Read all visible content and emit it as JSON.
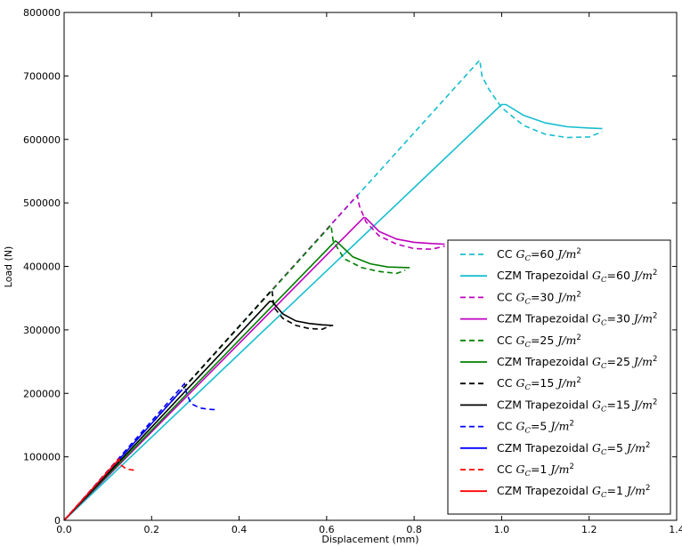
{
  "chart_data": {
    "type": "line",
    "xlabel": "Displacement (mm)",
    "ylabel": "Load (N)",
    "xlim": [
      0,
      1.4
    ],
    "ylim": [
      0,
      800000
    ],
    "xticks": [
      "0.0",
      "0.2",
      "0.4",
      "0.6",
      "0.8",
      "1.0",
      "1.2",
      "1.4"
    ],
    "yticks": [
      "0",
      "100000",
      "200000",
      "300000",
      "400000",
      "500000",
      "600000",
      "700000",
      "800000"
    ],
    "grid": false,
    "legend_position": "bottom-right",
    "series": [
      {
        "name": "CC",
        "gc": "60",
        "color": "#17becf",
        "dash": true,
        "x": [
          0,
          0.95,
          0.955,
          0.97,
          1.0,
          1.05,
          1.1,
          1.15,
          1.2,
          1.23
        ],
        "y": [
          0,
          725000,
          700000,
          680000,
          650000,
          622000,
          608000,
          603000,
          604000,
          612000
        ]
      },
      {
        "name": "CZM Trapezoidal",
        "gc": "60",
        "color": "#17becf",
        "dash": false,
        "x": [
          0,
          1.0,
          1.01,
          1.05,
          1.1,
          1.15,
          1.2,
          1.23
        ],
        "y": [
          0,
          655000,
          655000,
          638000,
          626000,
          620000,
          618000,
          617000
        ]
      },
      {
        "name": "CC",
        "gc": "30",
        "color": "#bf00bf",
        "dash": true,
        "x": [
          0,
          0.67,
          0.675,
          0.69,
          0.72,
          0.76,
          0.8,
          0.84,
          0.87
        ],
        "y": [
          0,
          512000,
          495000,
          470000,
          448000,
          435000,
          428000,
          427000,
          432000
        ]
      },
      {
        "name": "CZM Trapezoidal",
        "gc": "30",
        "color": "#bf00bf",
        "dash": false,
        "x": [
          0,
          0.685,
          0.69,
          0.72,
          0.76,
          0.8,
          0.84,
          0.87
        ],
        "y": [
          0,
          477000,
          476000,
          455000,
          443000,
          438000,
          436000,
          435000
        ]
      },
      {
        "name": "CC",
        "gc": "25",
        "color": "#008000",
        "dash": true,
        "x": [
          0,
          0.61,
          0.615,
          0.64,
          0.68,
          0.72,
          0.76,
          0.78
        ],
        "y": [
          0,
          465000,
          440000,
          412000,
          398000,
          392000,
          389000,
          394000
        ]
      },
      {
        "name": "CZM Trapezoidal",
        "gc": "25",
        "color": "#008000",
        "dash": false,
        "x": [
          0,
          0.62,
          0.625,
          0.66,
          0.7,
          0.74,
          0.79
        ],
        "y": [
          0,
          440000,
          438000,
          415000,
          404000,
          399000,
          398000
        ]
      },
      {
        "name": "CC",
        "gc": "15",
        "color": "#000000",
        "dash": true,
        "x": [
          0,
          0.475,
          0.48,
          0.5,
          0.53,
          0.56,
          0.59,
          0.61
        ],
        "y": [
          0,
          363000,
          335000,
          318000,
          307000,
          302000,
          301000,
          307000
        ]
      },
      {
        "name": "CZM Trapezoidal",
        "gc": "15",
        "color": "#000000",
        "dash": false,
        "x": [
          0,
          0.47,
          0.475,
          0.5,
          0.53,
          0.56,
          0.59,
          0.615
        ],
        "y": [
          0,
          345000,
          345000,
          325000,
          314000,
          310000,
          308000,
          307000
        ]
      },
      {
        "name": "CC",
        "gc": "5",
        "color": "#0000ff",
        "dash": true,
        "x": [
          0,
          0.275,
          0.28,
          0.29,
          0.31,
          0.33,
          0.35
        ],
        "y": [
          0,
          215000,
          200000,
          184000,
          177000,
          175000,
          174000
        ]
      },
      {
        "name": "CZM Trapezoidal",
        "gc": "5",
        "color": "#0000ff",
        "dash": false,
        "x": [
          0,
          0.27
        ],
        "y": [
          0,
          206000
        ]
      },
      {
        "name": "CC",
        "gc": "1",
        "color": "#ff0000",
        "dash": true,
        "x": [
          0,
          0.125,
          0.13,
          0.14,
          0.15,
          0.16
        ],
        "y": [
          0,
          97000,
          87000,
          82000,
          80000,
          79000
        ]
      },
      {
        "name": "CZM Trapezoidal",
        "gc": "1",
        "color": "#ff0000",
        "dash": false,
        "x": [
          0,
          0.125
        ],
        "y": [
          0,
          96000
        ]
      }
    ]
  }
}
